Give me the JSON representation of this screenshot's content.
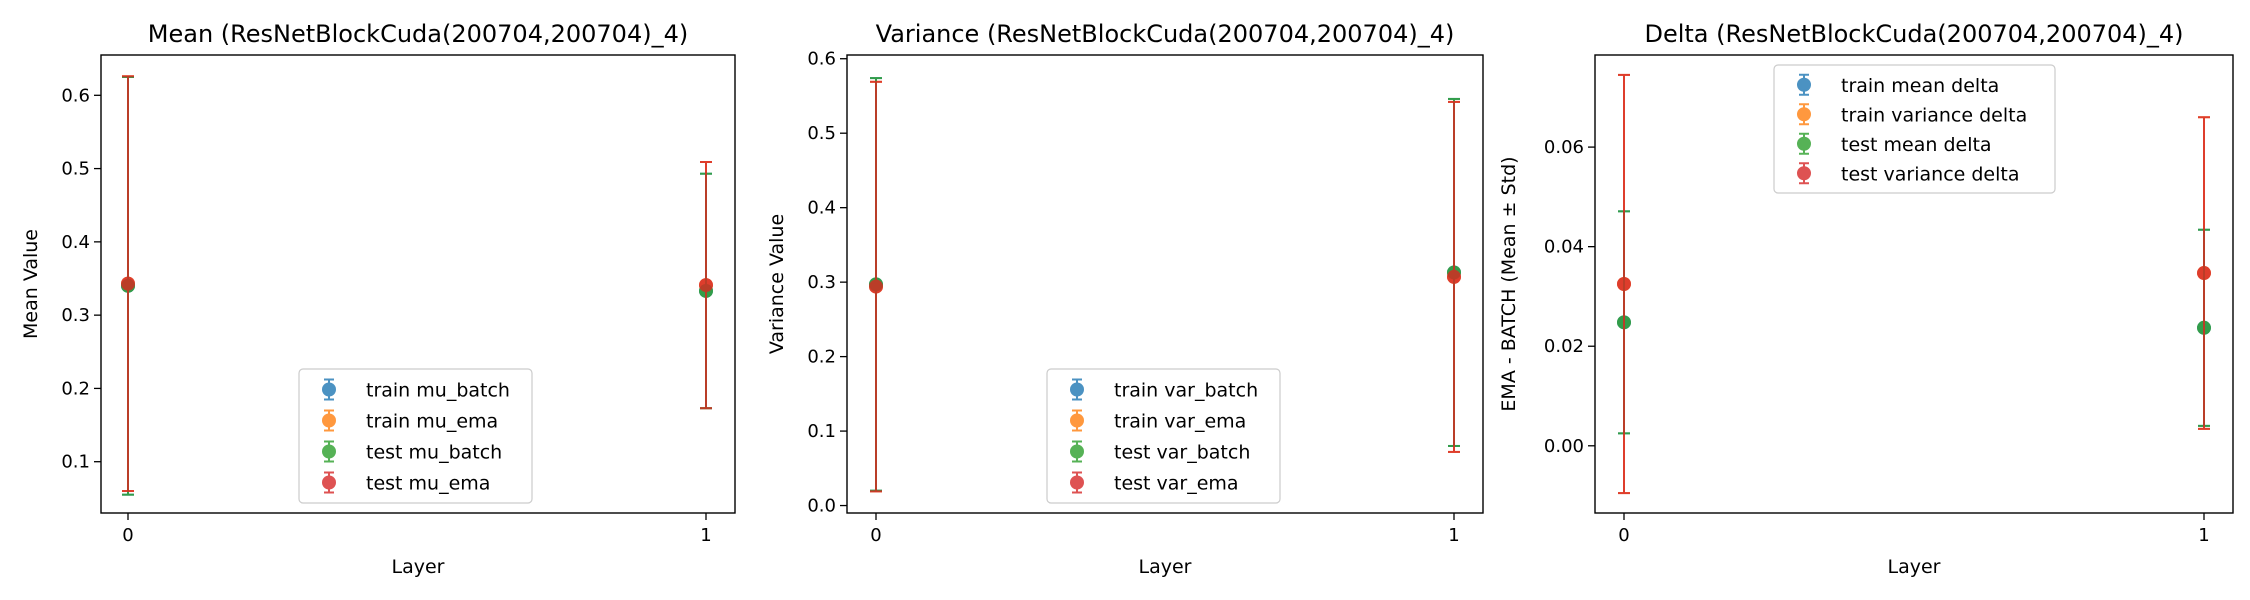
{
  "chart_data": [
    {
      "type": "errorbar",
      "title": "Mean (ResNetBlockCuda(200704,200704)_4)",
      "xlabel": "Layer",
      "ylabel": "Mean Value",
      "xticks": [
        0,
        1
      ],
      "ylim": [
        0.03,
        0.655
      ],
      "yticks": [
        0.1,
        0.2,
        0.3,
        0.4,
        0.5,
        0.6
      ],
      "legend_position": "lower-center",
      "series": [
        {
          "name": "train mu_batch",
          "color": "#1f77b4",
          "x": [
            0,
            1
          ],
          "y": [
            0.34,
            0.333
          ],
          "yerr": [
            0.285,
            0.16
          ]
        },
        {
          "name": "train mu_ema",
          "color": "#ff7f0e",
          "x": [
            0,
            1
          ],
          "y": [
            0.343,
            0.341
          ],
          "yerr": [
            0.283,
            0.168
          ]
        },
        {
          "name": "test mu_batch",
          "color": "#2ca02c",
          "x": [
            0,
            1
          ],
          "y": [
            0.34,
            0.333
          ],
          "yerr": [
            0.285,
            0.16
          ]
        },
        {
          "name": "test mu_ema",
          "color": "#d62728",
          "x": [
            0,
            1
          ],
          "y": [
            0.343,
            0.341
          ],
          "yerr": [
            0.283,
            0.168
          ]
        }
      ]
    },
    {
      "type": "errorbar",
      "title": "Variance (ResNetBlockCuda(200704,200704)_4)",
      "xlabel": "Layer",
      "ylabel": "Variance Value",
      "xticks": [
        0,
        1
      ],
      "ylim": [
        -0.01,
        0.605
      ],
      "yticks": [
        0.0,
        0.1,
        0.2,
        0.3,
        0.4,
        0.5,
        0.6
      ],
      "legend_position": "lower-center",
      "series": [
        {
          "name": "train var_batch",
          "color": "#1f77b4",
          "x": [
            0,
            1
          ],
          "y": [
            0.297,
            0.313
          ],
          "yerr": [
            0.277,
            0.233
          ]
        },
        {
          "name": "train var_ema",
          "color": "#ff7f0e",
          "x": [
            0,
            1
          ],
          "y": [
            0.294,
            0.307
          ],
          "yerr": [
            0.275,
            0.235
          ]
        },
        {
          "name": "test var_batch",
          "color": "#2ca02c",
          "x": [
            0,
            1
          ],
          "y": [
            0.297,
            0.313
          ],
          "yerr": [
            0.277,
            0.233
          ]
        },
        {
          "name": "test var_ema",
          "color": "#d62728",
          "x": [
            0,
            1
          ],
          "y": [
            0.294,
            0.307
          ],
          "yerr": [
            0.275,
            0.235
          ]
        }
      ]
    },
    {
      "type": "errorbar",
      "title": "Delta (ResNetBlockCuda(200704,200704)_4)",
      "xlabel": "Layer",
      "ylabel": "EMA - BATCH (Mean ± Std)",
      "xticks": [
        0,
        1
      ],
      "ylim": [
        -0.0135,
        0.0785
      ],
      "yticks": [
        0.0,
        0.02,
        0.04,
        0.06
      ],
      "legend_position": "upper-center",
      "series": [
        {
          "name": "train mean delta",
          "color": "#1f77b4",
          "x": [
            0,
            1
          ],
          "y": [
            0.0248,
            0.0237
          ],
          "yerr": [
            0.0223,
            0.0197
          ]
        },
        {
          "name": "train variance delta",
          "color": "#ff7f0e",
          "x": [
            0,
            1
          ],
          "y": [
            0.0325,
            0.0347
          ],
          "yerr": [
            0.042,
            0.0313
          ]
        },
        {
          "name": "test mean delta",
          "color": "#2ca02c",
          "x": [
            0,
            1
          ],
          "y": [
            0.0248,
            0.0237
          ],
          "yerr": [
            0.0223,
            0.0197
          ]
        },
        {
          "name": "test variance delta",
          "color": "#d62728",
          "x": [
            0,
            1
          ],
          "y": [
            0.0325,
            0.0347
          ],
          "yerr": [
            0.042,
            0.0313
          ]
        }
      ]
    }
  ]
}
